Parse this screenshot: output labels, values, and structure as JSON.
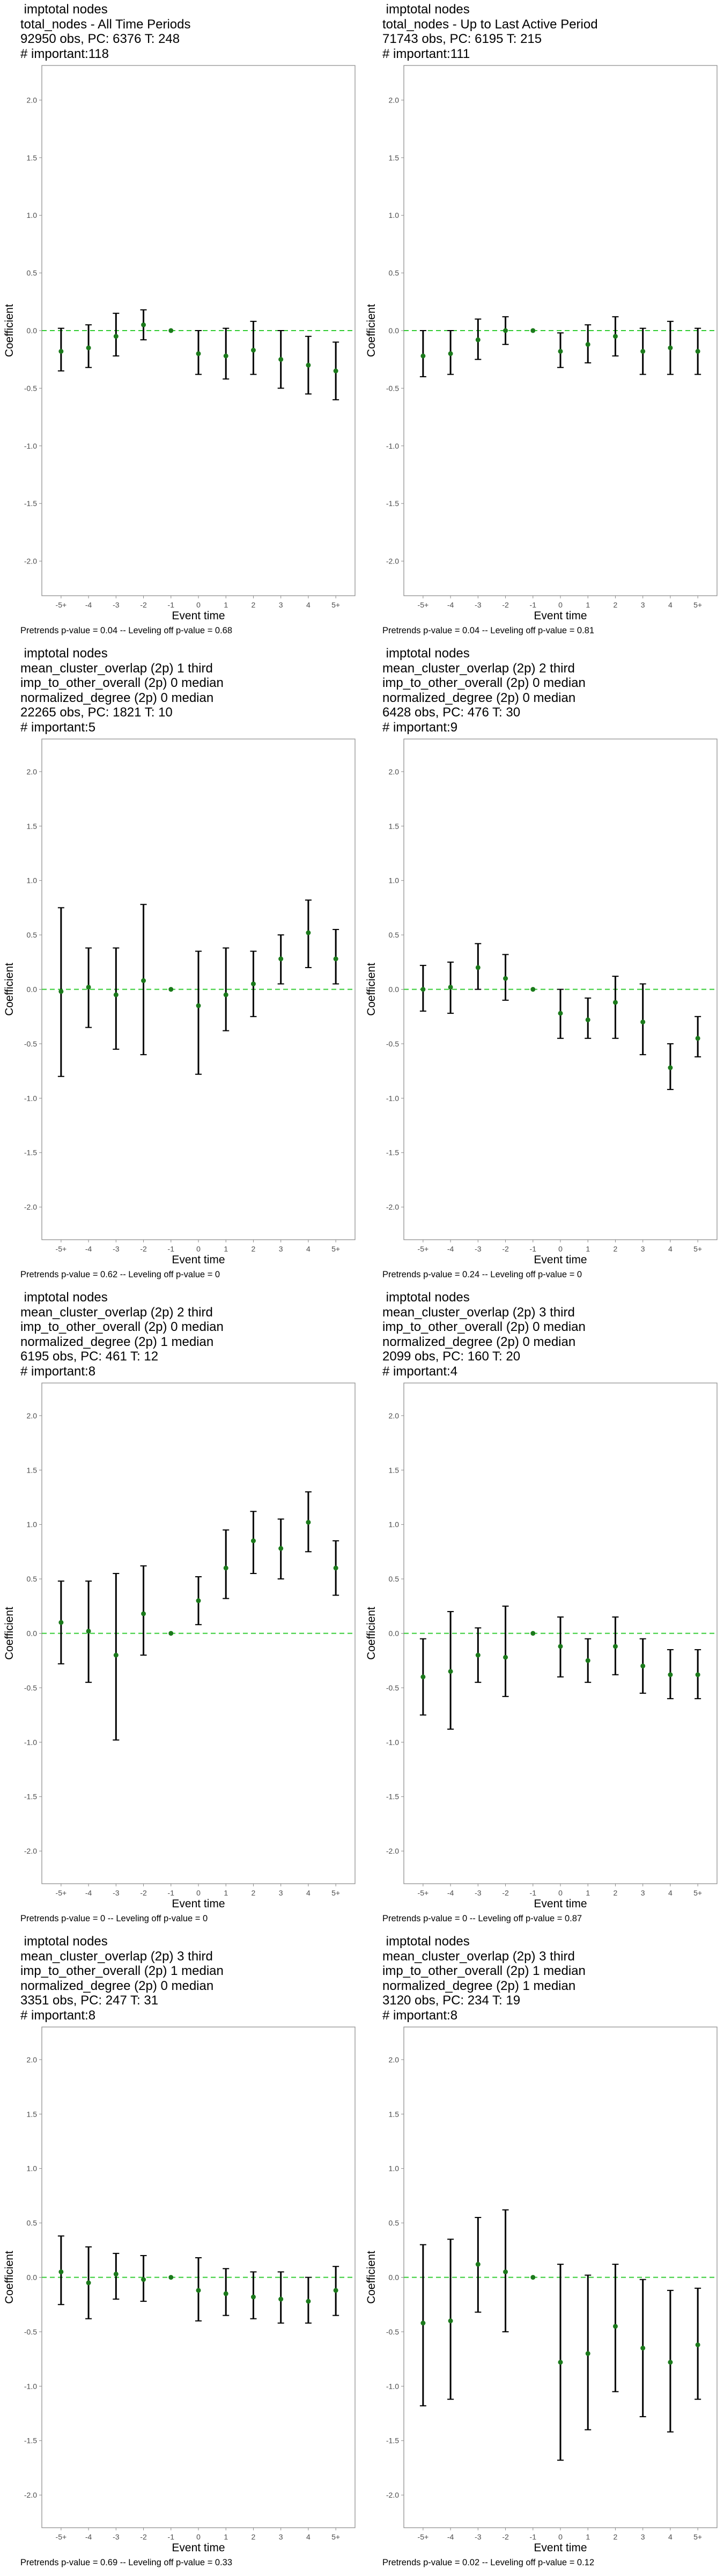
{
  "chart_data": [
    {
      "type": "scatter",
      "title_lines": [
        "imptotal nodes",
        "total_nodes - All Time Periods",
        "92950 obs, PC: 6376 T: 248",
        "# important:118"
      ],
      "xlabel": "Event time",
      "ylabel": "Coefficient",
      "categories": [
        "-5+",
        "-4",
        "-3",
        "-2",
        "-1",
        "0",
        "1",
        "2",
        "3",
        "4",
        "5+"
      ],
      "y_ticks": [
        "2.0",
        "1.5",
        "1.0",
        "0.5",
        "0.0",
        "-0.5",
        "-1.0",
        "-1.5",
        "-2.0"
      ],
      "ylim": [
        -2.3,
        2.3
      ],
      "values": [
        -0.18,
        -0.15,
        -0.05,
        0.05,
        0,
        -0.2,
        -0.22,
        -0.17,
        -0.25,
        -0.3,
        -0.35
      ],
      "ci_low": [
        -0.35,
        -0.32,
        -0.22,
        -0.08,
        0,
        -0.38,
        -0.42,
        -0.38,
        -0.5,
        -0.55,
        -0.6
      ],
      "ci_high": [
        0.02,
        0.05,
        0.15,
        0.18,
        0,
        0,
        0.02,
        0.08,
        0.0,
        -0.05,
        -0.1
      ],
      "footer": "Pretrends p-value = 0.04 -- Leveling off p-value = 0.68"
    },
    {
      "type": "scatter",
      "title_lines": [
        "imptotal nodes",
        "total_nodes - Up to Last Active Period",
        "71743 obs, PC: 6195 T: 215",
        "# important:111"
      ],
      "xlabel": "Event time",
      "ylabel": "Coefficient",
      "categories": [
        "-5+",
        "-4",
        "-3",
        "-2",
        "-1",
        "0",
        "1",
        "2",
        "3",
        "4",
        "5+"
      ],
      "y_ticks": [
        "2.0",
        "1.5",
        "1.0",
        "0.5",
        "0.0",
        "-0.5",
        "-1.0",
        "-1.5",
        "-2.0"
      ],
      "ylim": [
        -2.3,
        2.3
      ],
      "values": [
        -0.22,
        -0.2,
        -0.08,
        0.0,
        0,
        -0.18,
        -0.12,
        -0.05,
        -0.18,
        -0.15,
        -0.18
      ],
      "ci_low": [
        -0.4,
        -0.38,
        -0.25,
        -0.12,
        0,
        -0.32,
        -0.28,
        -0.22,
        -0.38,
        -0.38,
        -0.38
      ],
      "ci_high": [
        0.0,
        0.0,
        0.1,
        0.12,
        0,
        -0.02,
        0.05,
        0.12,
        0.02,
        0.08,
        0.02
      ],
      "footer": "Pretrends p-value = 0.04 -- Leveling off p-value = 0.81"
    },
    {
      "type": "scatter",
      "title_lines": [
        "imptotal nodes",
        "mean_cluster_overlap (2p) 1 third",
        "imp_to_other_overall (2p) 0 median",
        "normalized_degree (2p) 0 median",
        "22265 obs, PC: 1821 T: 10",
        "# important:5"
      ],
      "xlabel": "Event time",
      "ylabel": "Coefficient",
      "categories": [
        "-5+",
        "-4",
        "-3",
        "-2",
        "-1",
        "0",
        "1",
        "2",
        "3",
        "4",
        "5+"
      ],
      "y_ticks": [
        "2.0",
        "1.5",
        "1.0",
        "0.5",
        "0.0",
        "-0.5",
        "-1.0",
        "-1.5",
        "-2.0"
      ],
      "ylim": [
        -2.3,
        2.3
      ],
      "values": [
        -0.02,
        0.02,
        -0.05,
        0.08,
        0,
        -0.15,
        -0.05,
        0.05,
        0.28,
        0.52,
        0.28
      ],
      "ci_low": [
        -0.8,
        -0.35,
        -0.55,
        -0.6,
        0,
        -0.78,
        -0.38,
        -0.25,
        0.05,
        0.2,
        0.05
      ],
      "ci_high": [
        0.75,
        0.38,
        0.38,
        0.78,
        0,
        0.35,
        0.38,
        0.35,
        0.5,
        0.82,
        0.55
      ],
      "footer": "Pretrends p-value = 0.62 -- Leveling off p-value = 0"
    },
    {
      "type": "scatter",
      "title_lines": [
        "imptotal nodes",
        "mean_cluster_overlap (2p) 2 third",
        "imp_to_other_overall (2p) 0 median",
        "normalized_degree (2p) 0 median",
        "6428 obs, PC: 476 T: 30",
        "# important:9"
      ],
      "xlabel": "Event time",
      "ylabel": "Coefficient",
      "categories": [
        "-5+",
        "-4",
        "-3",
        "-2",
        "-1",
        "0",
        "1",
        "2",
        "3",
        "4",
        "5+"
      ],
      "y_ticks": [
        "2.0",
        "1.5",
        "1.0",
        "0.5",
        "0.0",
        "-0.5",
        "-1.0",
        "-1.5",
        "-2.0"
      ],
      "ylim": [
        -2.3,
        2.3
      ],
      "values": [
        0.0,
        0.02,
        0.2,
        0.1,
        0,
        -0.22,
        -0.28,
        -0.12,
        -0.3,
        -0.72,
        -0.45
      ],
      "ci_low": [
        -0.2,
        -0.22,
        0.0,
        -0.1,
        0,
        -0.45,
        -0.45,
        -0.45,
        -0.6,
        -0.92,
        -0.62
      ],
      "ci_high": [
        0.22,
        0.25,
        0.42,
        0.32,
        0,
        0.0,
        -0.08,
        0.12,
        0.05,
        -0.5,
        -0.25
      ],
      "footer": "Pretrends p-value = 0.24 -- Leveling off p-value = 0"
    },
    {
      "type": "scatter",
      "title_lines": [
        "imptotal nodes",
        "mean_cluster_overlap (2p) 2 third",
        "imp_to_other_overall (2p) 0 median",
        "normalized_degree (2p) 1 median",
        "6195 obs, PC: 461 T: 12",
        "# important:8"
      ],
      "xlabel": "Event time",
      "ylabel": "Coefficient",
      "categories": [
        "-5+",
        "-4",
        "-3",
        "-2",
        "-1",
        "0",
        "1",
        "2",
        "3",
        "4",
        "5+"
      ],
      "y_ticks": [
        "2.0",
        "1.5",
        "1.0",
        "0.5",
        "0.0",
        "-0.5",
        "-1.0",
        "-1.5",
        "-2.0"
      ],
      "ylim": [
        -2.3,
        2.3
      ],
      "values": [
        0.1,
        0.02,
        -0.2,
        0.18,
        0,
        0.3,
        0.6,
        0.85,
        0.78,
        1.02,
        0.6
      ],
      "ci_low": [
        -0.28,
        -0.45,
        -0.98,
        -0.2,
        0,
        0.08,
        0.32,
        0.55,
        0.5,
        0.75,
        0.35
      ],
      "ci_high": [
        0.48,
        0.48,
        0.55,
        0.62,
        0,
        0.52,
        0.95,
        1.12,
        1.05,
        1.3,
        0.85
      ],
      "footer": "Pretrends p-value = 0 -- Leveling off p-value = 0"
    },
    {
      "type": "scatter",
      "title_lines": [
        "imptotal nodes",
        "mean_cluster_overlap (2p) 3 third",
        "imp_to_other_overall (2p) 0 median",
        "normalized_degree (2p) 0 median",
        "2099 obs, PC: 160 T: 20",
        "# important:4"
      ],
      "xlabel": "Event time",
      "ylabel": "Coefficient",
      "categories": [
        "-5+",
        "-4",
        "-3",
        "-2",
        "-1",
        "0",
        "1",
        "2",
        "3",
        "4",
        "5+"
      ],
      "y_ticks": [
        "2.0",
        "1.5",
        "1.0",
        "0.5",
        "0.0",
        "-0.5",
        "-1.0",
        "-1.5",
        "-2.0"
      ],
      "ylim": [
        -2.3,
        2.3
      ],
      "values": [
        -0.4,
        -0.35,
        -0.2,
        -0.22,
        0,
        -0.12,
        -0.25,
        -0.12,
        -0.3,
        -0.38,
        -0.38
      ],
      "ci_low": [
        -0.75,
        -0.88,
        -0.45,
        -0.58,
        0,
        -0.4,
        -0.45,
        -0.38,
        -0.55,
        -0.6,
        -0.6
      ],
      "ci_high": [
        -0.05,
        0.2,
        0.05,
        0.25,
        0,
        0.15,
        -0.05,
        0.15,
        -0.05,
        -0.15,
        -0.15
      ],
      "footer": "Pretrends p-value = 0 -- Leveling off p-value = 0.87"
    },
    {
      "type": "scatter",
      "title_lines": [
        "imptotal nodes",
        "mean_cluster_overlap (2p) 3 third",
        "imp_to_other_overall (2p) 1 median",
        "normalized_degree (2p) 0 median",
        "3351 obs, PC: 247 T: 31",
        "# important:8"
      ],
      "xlabel": "Event time",
      "ylabel": "Coefficient",
      "categories": [
        "-5+",
        "-4",
        "-3",
        "-2",
        "-1",
        "0",
        "1",
        "2",
        "3",
        "4",
        "5+"
      ],
      "y_ticks": [
        "2.0",
        "1.5",
        "1.0",
        "0.5",
        "0.0",
        "-0.5",
        "-1.0",
        "-1.5",
        "-2.0"
      ],
      "ylim": [
        -2.3,
        2.3
      ],
      "values": [
        0.05,
        -0.05,
        0.03,
        -0.02,
        0,
        -0.12,
        -0.15,
        -0.18,
        -0.2,
        -0.22,
        -0.12
      ],
      "ci_low": [
        -0.25,
        -0.38,
        -0.2,
        -0.22,
        0,
        -0.4,
        -0.35,
        -0.38,
        -0.42,
        -0.42,
        -0.35
      ],
      "ci_high": [
        0.38,
        0.28,
        0.22,
        0.2,
        0,
        0.18,
        0.08,
        0.05,
        0.05,
        0.0,
        0.1
      ],
      "footer": "Pretrends p-value = 0.69 -- Leveling off p-value = 0.33"
    },
    {
      "type": "scatter",
      "title_lines": [
        "imptotal nodes",
        "mean_cluster_overlap (2p) 3 third",
        "imp_to_other_overall (2p) 1 median",
        "normalized_degree (2p) 1 median",
        "3120 obs, PC: 234 T: 19",
        "# important:8"
      ],
      "xlabel": "Event time",
      "ylabel": "Coefficient",
      "categories": [
        "-5+",
        "-4",
        "-3",
        "-2",
        "-1",
        "0",
        "1",
        "2",
        "3",
        "4",
        "5+"
      ],
      "y_ticks": [
        "2.0",
        "1.5",
        "1.0",
        "0.5",
        "0.0",
        "-0.5",
        "-1.0",
        "-1.5",
        "-2.0"
      ],
      "ylim": [
        -2.3,
        2.3
      ],
      "values": [
        -0.42,
        -0.4,
        0.12,
        0.05,
        0,
        -0.78,
        -0.7,
        -0.45,
        -0.65,
        -0.78,
        -0.62
      ],
      "ci_low": [
        -1.18,
        -1.12,
        -0.32,
        -0.5,
        0,
        -1.68,
        -1.4,
        -1.05,
        -1.28,
        -1.42,
        -1.12
      ],
      "ci_high": [
        0.3,
        0.35,
        0.55,
        0.62,
        0,
        0.12,
        0.02,
        0.12,
        -0.02,
        -0.12,
        -0.1
      ],
      "footer": "Pretrends p-value = 0.02 -- Leveling off p-value = 0.12"
    }
  ],
  "colors": {
    "point": "#1b7a1b",
    "errorbar": "#000000",
    "zero_line": "#33cc33",
    "frame": "#888888",
    "tick_label": "#4d4d4d"
  }
}
